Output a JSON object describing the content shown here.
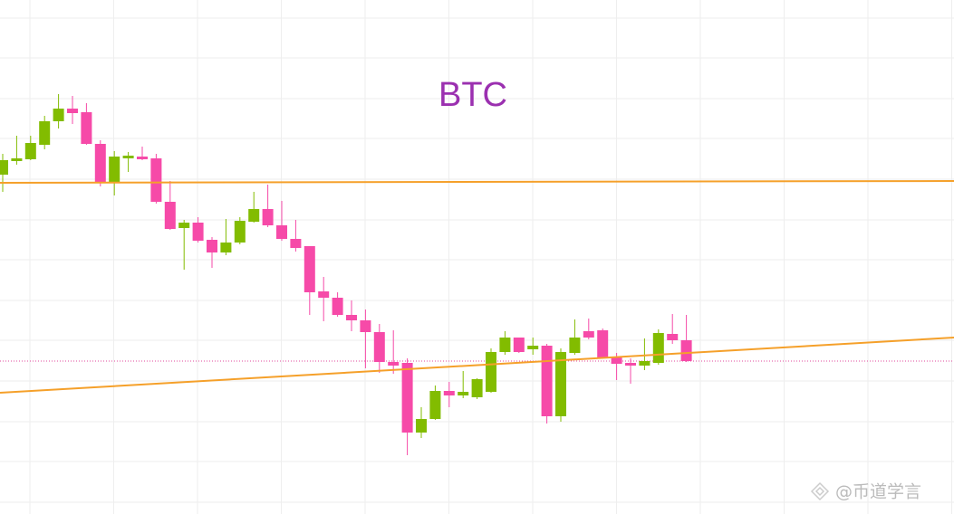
{
  "chart_data": {
    "type": "candlestick",
    "title": "BTC",
    "title_color": "#9b30b0",
    "watermark": "@币道学言",
    "categories": [
      null,
      null,
      null,
      null,
      null,
      null,
      null,
      null,
      null,
      null,
      null,
      null,
      null,
      null,
      null,
      null,
      null,
      null,
      null,
      null,
      null,
      null,
      null,
      null,
      null,
      null,
      null,
      null,
      null,
      null,
      null,
      null,
      null,
      null,
      null,
      null,
      null,
      null,
      null,
      null,
      null,
      null,
      null,
      null,
      null,
      null,
      null,
      null,
      null,
      null
    ],
    "open": [
      375,
      390,
      392,
      408,
      434,
      448,
      444,
      409,
      367,
      393,
      395,
      393,
      345,
      316,
      322,
      303,
      289,
      300,
      323,
      337,
      319,
      304,
      296,
      246,
      239,
      220,
      214,
      201,
      168,
      167,
      90,
      105,
      136,
      131,
      129,
      135,
      179,
      195,
      182,
      186,
      108,
      178,
      202,
      203,
      174,
      167,
      164,
      167,
      199,
      192
    ],
    "high": [
      398,
      418,
      418,
      440,
      464,
      462,
      454,
      413,
      401,
      400,
      406,
      398,
      368,
      325,
      328,
      306,
      326,
      328,
      356,
      364,
      346,
      325,
      296,
      262,
      245,
      236,
      226,
      210,
      203,
      172,
      118,
      142,
      146,
      158,
      150,
      183,
      202,
      195,
      195,
      188,
      183,
      215,
      216,
      205,
      178,
      172,
      194,
      204,
      221,
      220
    ],
    "low": [
      356,
      386,
      391,
      403,
      426,
      431,
      408,
      362,
      352,
      378,
      391,
      343,
      314,
      270,
      300,
      272,
      286,
      298,
      322,
      317,
      302,
      290,
      220,
      213,
      218,
      202,
      161,
      156,
      155,
      65,
      84,
      104,
      118,
      128,
      127,
      134,
      176,
      178,
      176,
      100,
      102,
      176,
      193,
      172,
      148,
      144,
      159,
      165,
      188,
      168
    ],
    "close": [
      391,
      393,
      410,
      434,
      448,
      443,
      409,
      366,
      395,
      396,
      392,
      345,
      315,
      322,
      302,
      289,
      300,
      324,
      337,
      319,
      304,
      294,
      245,
      239,
      220,
      214,
      201,
      168,
      164,
      90,
      105,
      136,
      131,
      135,
      149,
      179,
      195,
      179,
      186,
      108,
      179,
      195,
      195,
      173,
      166,
      164,
      169,
      200,
      192,
      169
    ],
    "up_color": "#82bc00",
    "down_color": "#f64aa8",
    "ylim": [
      0,
      568
    ],
    "yticks": [
      13,
      58,
      102,
      147,
      192,
      236,
      281,
      325,
      370,
      415,
      459,
      504,
      548
    ],
    "grid": true,
    "trend_lines": [
      {
        "color": "#f5a02a",
        "start": 366,
        "end": 368
      },
      {
        "color": "#f5a02a",
        "start": 134,
        "end": 195
      }
    ],
    "reference_line": {
      "value": 169,
      "color": "#e0489c"
    }
  }
}
